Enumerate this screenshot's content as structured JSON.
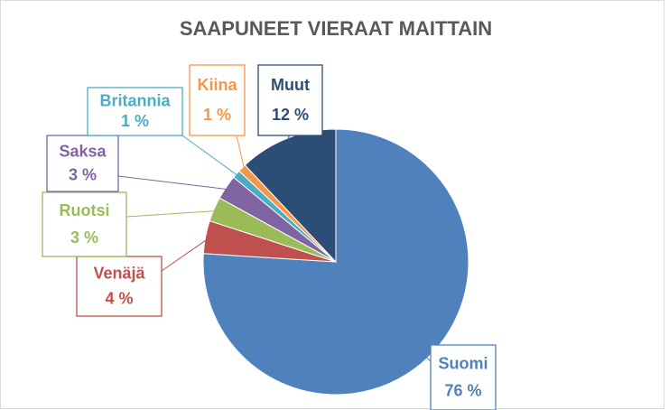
{
  "chart_data": {
    "type": "pie",
    "title": "SAAPUNEET VIERAAT MAITTAIN",
    "categories": [
      "Suomi",
      "Venäjä",
      "Ruotsi",
      "Saksa",
      "Britannia",
      "Kiina",
      "Muut"
    ],
    "values": [
      76,
      4,
      3,
      3,
      1,
      1,
      12
    ],
    "value_labels": [
      "76 %",
      "4 %",
      "3 %",
      "3 %",
      "1 %",
      "1 %",
      "12 %"
    ],
    "colors": [
      "#4f81bd",
      "#c0504d",
      "#9bbb59",
      "#8064a2",
      "#4bacc6",
      "#f79646",
      "#2c4d75"
    ]
  }
}
